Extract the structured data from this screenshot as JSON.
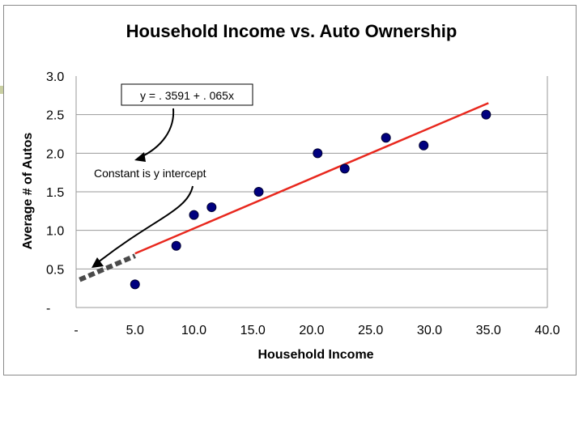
{
  "chart_data": {
    "type": "scatter",
    "title": "Household Income vs. Auto Ownership",
    "xlabel": "Household Income",
    "ylabel": "Average # of Autos",
    "xlim": [
      0,
      40
    ],
    "ylim": [
      0,
      3
    ],
    "x_ticks": [
      {
        "value": 0,
        "label": "-"
      },
      {
        "value": 5,
        "label": "5.0"
      },
      {
        "value": 10,
        "label": "10.0"
      },
      {
        "value": 15,
        "label": "15.0"
      },
      {
        "value": 20,
        "label": "20.0"
      },
      {
        "value": 25,
        "label": "25.0"
      },
      {
        "value": 30,
        "label": "30.0"
      },
      {
        "value": 35,
        "label": "35.0"
      },
      {
        "value": 40,
        "label": "40.0"
      }
    ],
    "y_ticks": [
      {
        "value": 0,
        "label": "-"
      },
      {
        "value": 0.5,
        "label": "0.5"
      },
      {
        "value": 1,
        "label": "1.0"
      },
      {
        "value": 1.5,
        "label": "1.5"
      },
      {
        "value": 2,
        "label": "2.0"
      },
      {
        "value": 2.5,
        "label": "2.5"
      },
      {
        "value": 3,
        "label": "3.0"
      }
    ],
    "grid": "horizontal",
    "points": [
      {
        "x": 5.0,
        "y": 0.3
      },
      {
        "x": 8.5,
        "y": 0.8
      },
      {
        "x": 10.0,
        "y": 1.2
      },
      {
        "x": 11.5,
        "y": 1.3
      },
      {
        "x": 15.5,
        "y": 1.5
      },
      {
        "x": 20.5,
        "y": 2.0
      },
      {
        "x": 22.8,
        "y": 1.8
      },
      {
        "x": 26.3,
        "y": 2.2
      },
      {
        "x": 29.5,
        "y": 2.1
      },
      {
        "x": 34.8,
        "y": 2.5
      }
    ],
    "trendline": {
      "x_start": 5.0,
      "x_end": 35.0,
      "y_start": 0.7,
      "y_end": 2.65
    },
    "extrapolation": {
      "x_start": 0.3,
      "x_end": 5.0,
      "y_start": 0.36,
      "y_end": 0.67
    },
    "annotations": {
      "equation": "y = . 3591 + . 065x",
      "note": "Constant is y intercept"
    },
    "colors": {
      "points": "#00007f",
      "trendline": "#e8281e",
      "extrapolation": "#4a4a4a",
      "grid": "#9a9a9a"
    }
  }
}
